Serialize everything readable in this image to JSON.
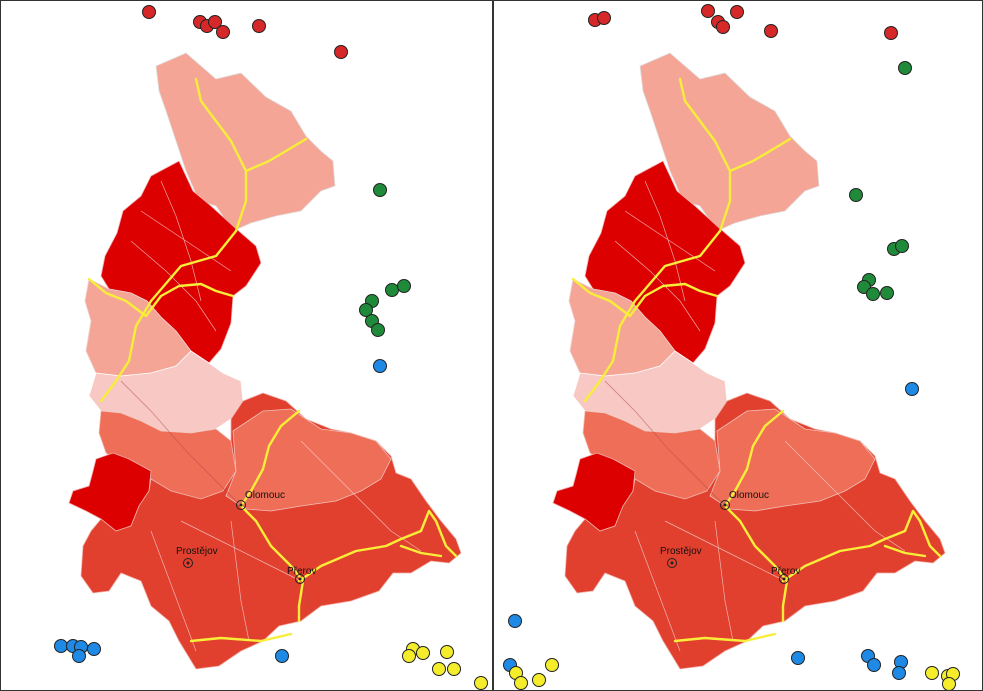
{
  "colors": {
    "very_dark_red": "#dc0000",
    "red": "#e2402e",
    "orange_red": "#ef6e57",
    "salmon": "#f4a596",
    "light_pink": "#f7c8c4",
    "road_yellow": "#f8ee3a",
    "point_red": "#d62828",
    "point_green": "#1f8a3a",
    "point_blue": "#1e8ae6",
    "point_yellow": "#f5ec2c"
  },
  "cities": [
    {
      "id": "olomouc",
      "label": "Olomouc"
    },
    {
      "id": "prostejov",
      "label": "Prostějov"
    },
    {
      "id": "prerov",
      "label": "Přerov"
    }
  ],
  "panels": [
    {
      "id": "left"
    },
    {
      "id": "right"
    }
  ]
}
